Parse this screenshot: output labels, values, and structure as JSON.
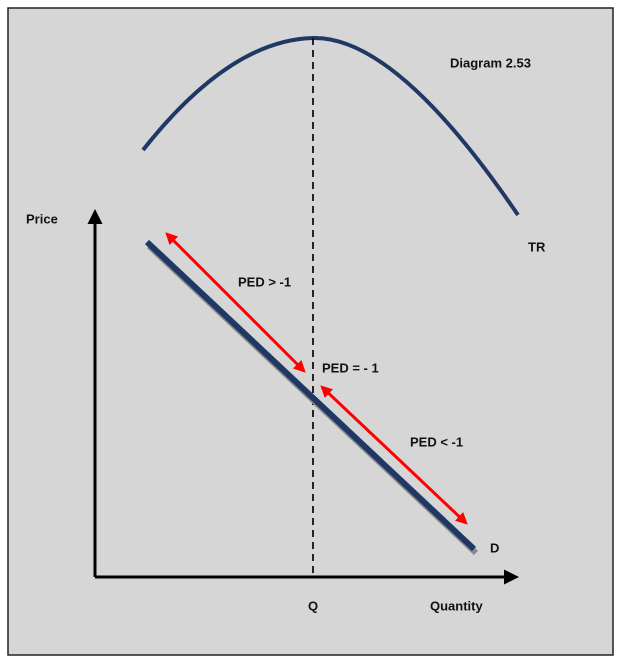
{
  "title": "Diagram 2.53",
  "curves": {
    "total_revenue": "TR",
    "demand": "D"
  },
  "axes": {
    "y_label": "Price",
    "x_label": "Quantity",
    "x_marker": "Q"
  },
  "annotations": [
    "PED > -1",
    "PED = - 1",
    "PED < -1"
  ]
}
